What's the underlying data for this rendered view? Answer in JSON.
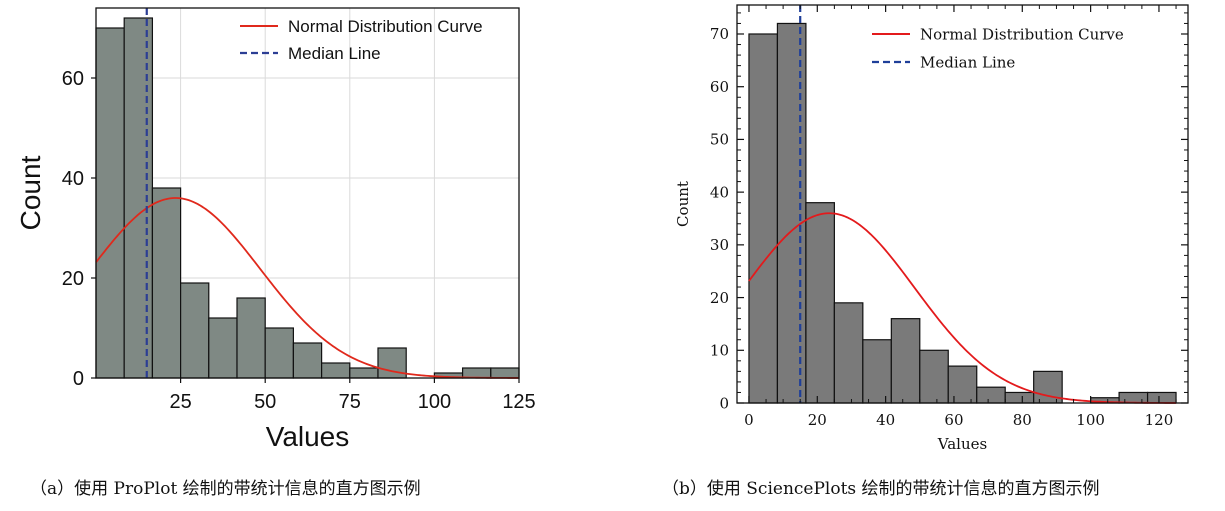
{
  "captions": {
    "a": "（a）使用 ProPlot 绘制的带统计信息的直方图示例",
    "b": "（b）使用 SciencePlots 绘制的带统计信息的直方图示例"
  },
  "chart_data": [
    {
      "type": "bar",
      "style": "ProPlot",
      "xlabel": "Values",
      "ylabel": "Count",
      "bin_edges": [
        0,
        8.33,
        16.67,
        25,
        33.33,
        41.67,
        50,
        58.33,
        66.67,
        75,
        83.33,
        91.67,
        100,
        108.33,
        116.67,
        125
      ],
      "counts": [
        70,
        72,
        38,
        19,
        12,
        16,
        10,
        7,
        3,
        2,
        6,
        0,
        1,
        2,
        2
      ],
      "xlim": [
        0,
        125
      ],
      "ylim": [
        0,
        74
      ],
      "xticks": [
        25,
        50,
        75,
        100,
        125
      ],
      "yticks": [
        0,
        20,
        40,
        60
      ],
      "grid": true,
      "median": 15,
      "normal_curve": {
        "mean": 23.5,
        "sd": 25,
        "peak": 36
      },
      "legend_position": "top-right",
      "legend": [
        "Normal Distribution Curve",
        "Median Line"
      ],
      "colors": {
        "bar": "#7f8984",
        "bar_edge": "#111111",
        "curve": "#e0291c",
        "median": "#2c3e94"
      }
    },
    {
      "type": "bar",
      "style": "SciencePlots",
      "xlabel": "Values",
      "ylabel": "Count",
      "bin_edges": [
        0,
        8.33,
        16.67,
        25,
        33.33,
        41.67,
        50,
        58.33,
        66.67,
        75,
        83.33,
        91.67,
        100,
        108.33,
        116.67,
        125
      ],
      "counts": [
        70,
        72,
        38,
        19,
        12,
        16,
        10,
        7,
        3,
        2,
        6,
        0,
        1,
        2,
        2
      ],
      "xlim": [
        -3.5,
        128.5
      ],
      "ylim": [
        0,
        75.5
      ],
      "xticks": [
        0,
        20,
        40,
        60,
        80,
        100,
        120
      ],
      "yticks": [
        0,
        10,
        20,
        30,
        40,
        50,
        60,
        70
      ],
      "grid": false,
      "median": 15,
      "normal_curve": {
        "mean": 23.5,
        "sd": 25,
        "peak": 36
      },
      "legend_position": "top-right",
      "legend": [
        "Normal Distribution Curve",
        "Median Line"
      ],
      "colors": {
        "bar": "#7a7a7a",
        "bar_edge": "#111111",
        "curve": "#e31a1c",
        "median": "#1f3f99"
      }
    }
  ]
}
